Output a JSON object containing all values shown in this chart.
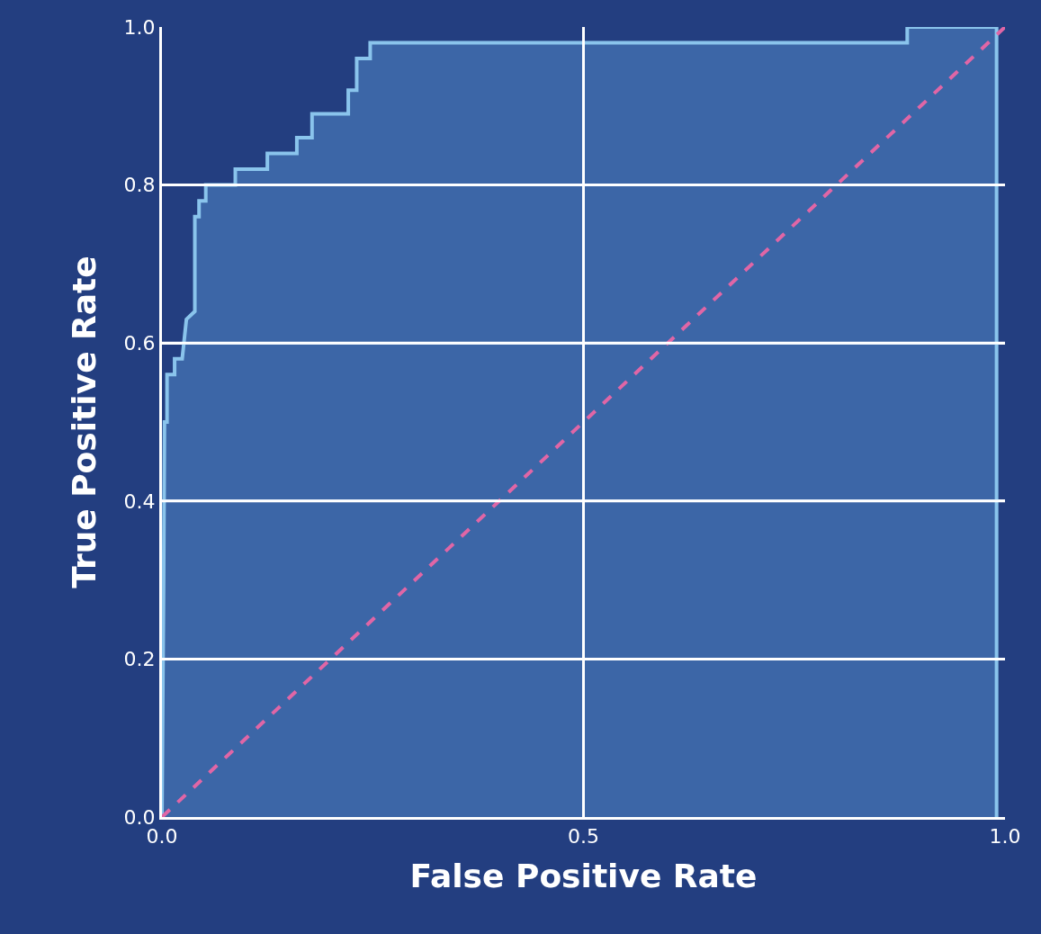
{
  "chart_data": {
    "type": "area",
    "xlabel": "False Positive Rate",
    "ylabel": "True Positive Rate",
    "series": [
      {
        "x": [
          0,
          0.002,
          0.003,
          0.006,
          0.006,
          0.015,
          0.015,
          0.024,
          0.029,
          0.039,
          0.039,
          0.044,
          0.044,
          0.052,
          0.052,
          0.087,
          0.087,
          0.125,
          0.125,
          0.16,
          0.16,
          0.178,
          0.178,
          0.221,
          0.221,
          0.231,
          0.231,
          0.247,
          0.247,
          0.884,
          0.884,
          0.99,
          0.99
        ],
        "values": [
          0,
          0.3,
          0.5,
          0.5,
          0.56,
          0.56,
          0.58,
          0.58,
          0.63,
          0.64,
          0.76,
          0.76,
          0.78,
          0.78,
          0.8,
          0.8,
          0.82,
          0.82,
          0.84,
          0.84,
          0.86,
          0.86,
          0.89,
          0.89,
          0.92,
          0.92,
          0.96,
          0.96,
          0.98,
          0.98,
          1.0,
          1.0,
          0
        ],
        "color": "#8ac4ec"
      },
      {
        "type": "line",
        "x": [
          0,
          1
        ],
        "values": [
          0,
          1
        ],
        "color": "#e066a6",
        "line_style": "dashed"
      }
    ],
    "xlim": [
      0,
      1.0
    ],
    "ylim": [
      0,
      1.0
    ],
    "xticks": [
      {
        "value": 0,
        "label": "0.0"
      },
      0.5,
      {
        "value": 1,
        "label": "1.0"
      }
    ],
    "yticks": [
      {
        "value": 0,
        "label": "0.0"
      },
      0.2,
      0.4,
      0.6,
      0.8,
      {
        "value": 1,
        "label": "1.0"
      }
    ],
    "grid": true,
    "legend": false
  }
}
